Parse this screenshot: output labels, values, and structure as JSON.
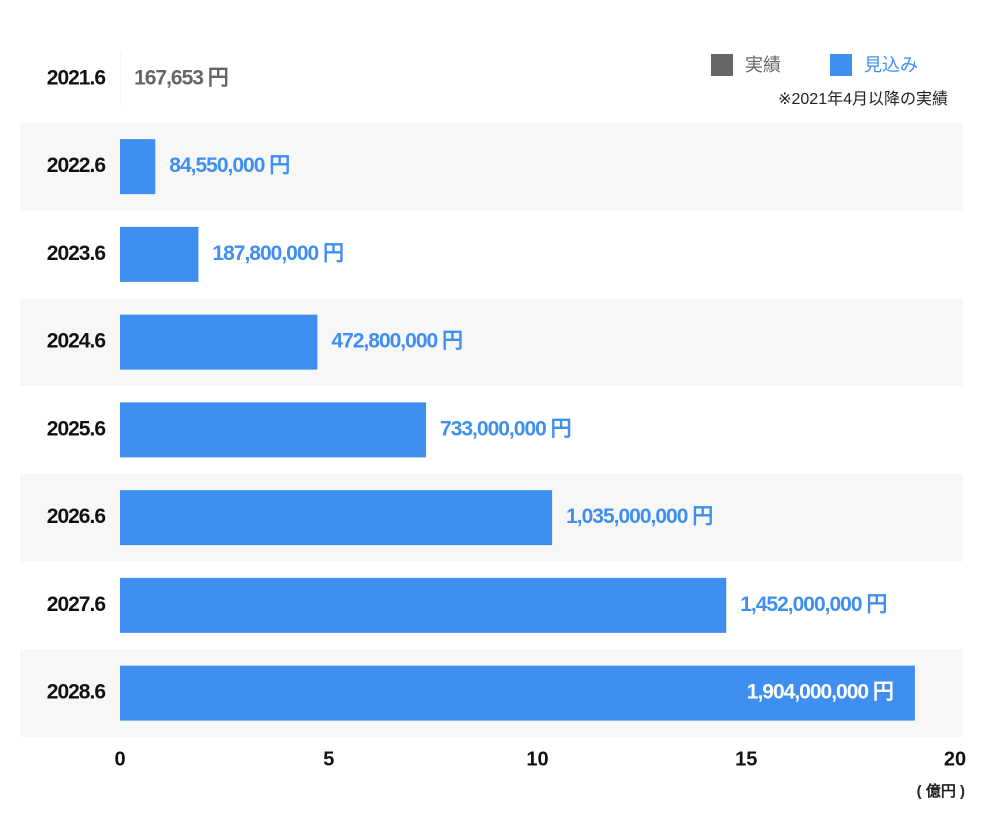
{
  "chart_data": {
    "type": "barh",
    "categories": [
      "2021.6",
      "2022.6",
      "2023.6",
      "2024.6",
      "2025.6",
      "2026.6",
      "2027.6",
      "2028.6"
    ],
    "series": [
      {
        "name": "実績",
        "color": "#666666",
        "values": [
          0.00167653,
          null,
          null,
          null,
          null,
          null,
          null,
          null
        ],
        "value_labels": [
          "167,653 円",
          null,
          null,
          null,
          null,
          null,
          null,
          null
        ]
      },
      {
        "name": "見込み",
        "color": "#3f8ff0",
        "values": [
          null,
          0.8455,
          1.878,
          4.728,
          7.33,
          10.35,
          14.52,
          19.04
        ],
        "value_labels": [
          null,
          "84,550,000 円",
          "187,800,000 円",
          "472,800,000 円",
          "733,000,000 円",
          "1,035,000,000 円",
          "1,452,000,000 円",
          "1,904,000,000 円"
        ]
      }
    ],
    "annotation": "※2021年4月以降の実績",
    "x_label": "( 億円 )",
    "xlim": [
      0,
      20
    ],
    "xticks": [
      0,
      5,
      10,
      15,
      20
    ],
    "legend": "top-right",
    "row_shading": true
  }
}
